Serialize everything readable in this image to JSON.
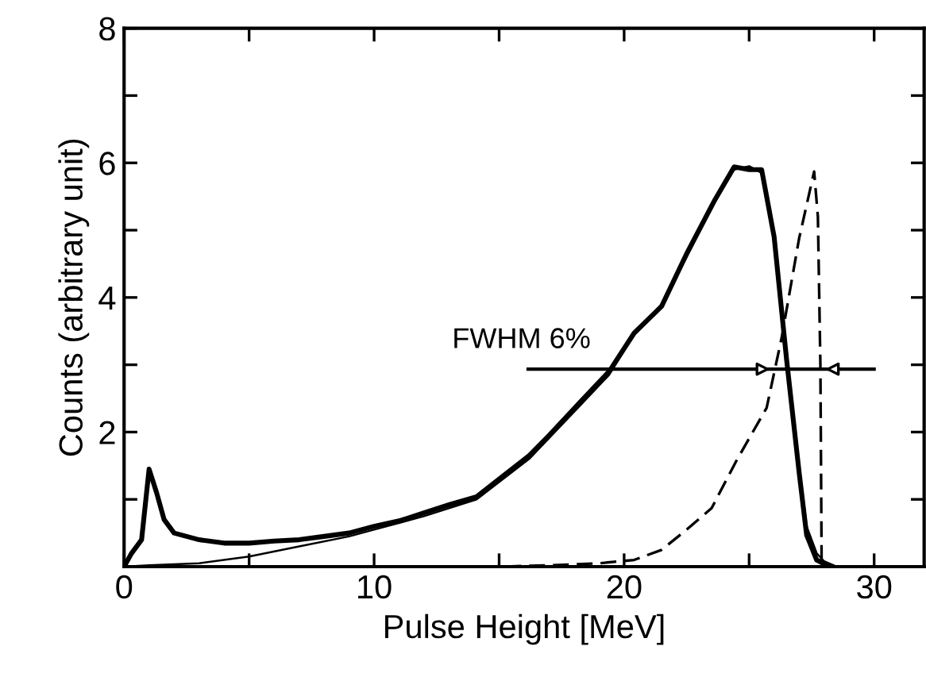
{
  "chart_data": {
    "type": "line",
    "xlabel": "Pulse Height [MeV]",
    "ylabel": "Counts (arbitrary unit)",
    "xlim": [
      0,
      32
    ],
    "xticks": [
      0,
      {
        "value": 5,
        "label": null
      },
      10,
      {
        "value": 15,
        "label": null
      },
      20,
      {
        "value": 25,
        "label": null
      },
      30
    ],
    "ylim": [
      0,
      8
    ],
    "yticks": [
      {
        "value": 0,
        "label": null
      },
      {
        "value": 1,
        "label": null
      },
      2,
      {
        "value": 3,
        "label": null
      },
      4,
      {
        "value": 5,
        "label": null
      },
      6,
      {
        "value": 7,
        "label": null
      },
      8
    ],
    "grid": false,
    "legend": false,
    "annotations": [
      "FWHM 6%"
    ],
    "series": [
      {
        "color": "#000000",
        "line_style": "solid",
        "x": [
          0,
          0.3,
          0.7,
          1.0,
          1.3,
          1.6,
          2.0,
          3.0,
          4.0,
          5.0,
          6.0,
          7.0,
          8.0,
          9.0,
          10.0,
          11.0,
          12.0,
          13.0,
          14.1,
          15.0,
          16.2,
          17.0,
          18.0,
          19.4,
          20.4,
          21.5,
          22.5,
          23.6,
          24.4,
          25.0,
          25.5,
          25.7,
          26.0,
          26.5,
          27.0,
          27.3,
          27.7,
          28.2
        ],
        "values": [
          0,
          0.2,
          0.4,
          1.45,
          1.1,
          0.7,
          0.5,
          0.4,
          0.35,
          0.35,
          0.38,
          0.4,
          0.45,
          0.5,
          0.6,
          0.68,
          0.8,
          0.92,
          1.04,
          1.3,
          1.65,
          1.95,
          2.35,
          2.9,
          3.47,
          3.87,
          4.65,
          5.43,
          5.94,
          5.9,
          5.9,
          5.5,
          4.9,
          3.07,
          1.4,
          0.47,
          0.1,
          0
        ]
      },
      {
        "color": "#000000",
        "line_style": "solid",
        "x": [
          0,
          1.0,
          3.0,
          5.0,
          7.0,
          9.0,
          10.0,
          12.0,
          14.1,
          16.2,
          18.0,
          19.4,
          20.4,
          21.5,
          22.5,
          23.6,
          24.4,
          25.0,
          25.5,
          25.7,
          26.0,
          26.5,
          27.0,
          27.3,
          27.7,
          28.0,
          28.5
        ],
        "values": [
          0,
          0.02,
          0.05,
          0.15,
          0.3,
          0.45,
          0.55,
          0.75,
          1.0,
          1.6,
          2.3,
          2.85,
          3.45,
          3.9,
          4.6,
          5.4,
          5.9,
          5.95,
          5.85,
          5.5,
          4.9,
          3.1,
          1.5,
          0.6,
          0.2,
          0.08,
          0
        ]
      },
      {
        "color": "#000000",
        "line_style": "dashed",
        "x": [
          0,
          15.0,
          17.0,
          19.0,
          20.4,
          21.5,
          22.5,
          23.5,
          24.5,
          25.7,
          26.3,
          27.0,
          27.6,
          27.75,
          27.85,
          27.9,
          28.3
        ],
        "values": [
          0,
          0,
          0.02,
          0.05,
          0.1,
          0.25,
          0.55,
          0.87,
          1.58,
          2.36,
          3.4,
          4.88,
          5.87,
          5.2,
          3.0,
          0,
          0
        ]
      }
    ]
  }
}
